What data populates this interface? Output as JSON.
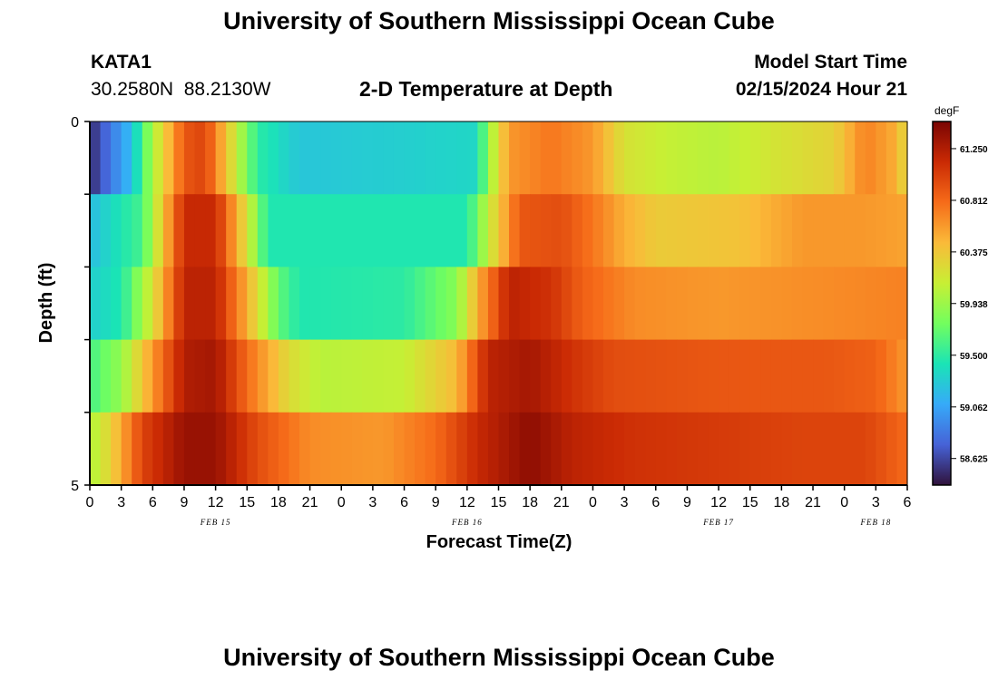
{
  "header": {
    "title": "University of Southern Mississippi Ocean Cube",
    "station_id": "KATA1",
    "coords": "30.2580N  88.2130W",
    "plot_title": "2-D Temperature at Depth",
    "model_start_label": "Model Start Time",
    "model_start_value": "02/15/2024 Hour 21"
  },
  "footer": {
    "title": "University of Southern Mississippi Ocean Cube"
  },
  "colors": {
    "axis": "#000000",
    "palette": [
      "#30123b",
      "#4662d7",
      "#36aaf9",
      "#1ae4b6",
      "#72fe5e",
      "#c8ef34",
      "#faba39",
      "#f66b19",
      "#ca2a04",
      "#7a0403"
    ]
  },
  "chart_data": {
    "type": "heatmap",
    "title": "2-D Temperature at Depth",
    "xlabel": "Forecast Time(Z)",
    "ylabel": "Depth (ft)",
    "x_range_hours": [
      0,
      78
    ],
    "y_range_ft": [
      0,
      5
    ],
    "y_tick_labels": [
      "0",
      "5"
    ],
    "x_tick_labels": [
      "0",
      "3",
      "6",
      "9",
      "12",
      "15",
      "18",
      "21",
      "0",
      "3",
      "6",
      "9",
      "12",
      "15",
      "18",
      "21",
      "0",
      "3",
      "6",
      "9",
      "12",
      "15",
      "18",
      "21",
      "0",
      "3",
      "6"
    ],
    "date_labels": [
      {
        "label": "FEB 15",
        "hour": 12
      },
      {
        "label": "FEB 16",
        "hour": 36
      },
      {
        "label": "FEB 17",
        "hour": 60
      },
      {
        "label": "FEB 18",
        "hour": 75
      }
    ],
    "colorbar": {
      "unit": "degF",
      "min": 58.4,
      "max": 61.48,
      "labels": [
        "61.250",
        "60.812",
        "60.375",
        "59.938",
        "59.500",
        "59.062",
        "58.625"
      ]
    },
    "depth_layers": [
      {
        "depth_ft": 0.5,
        "series": [
          {
            "hour": 0,
            "value": 58.5
          },
          {
            "hour": 4,
            "value": 59.2
          },
          {
            "hour": 6,
            "value": 60.0
          },
          {
            "hour": 9,
            "value": 60.9
          },
          {
            "hour": 11,
            "value": 61.0
          },
          {
            "hour": 13,
            "value": 60.4
          },
          {
            "hour": 16,
            "value": 59.5
          },
          {
            "hour": 20,
            "value": 59.25
          },
          {
            "hour": 30,
            "value": 59.3
          },
          {
            "hour": 37,
            "value": 59.35
          },
          {
            "hour": 38,
            "value": 59.9
          },
          {
            "hour": 40,
            "value": 60.6
          },
          {
            "hour": 44,
            "value": 60.75
          },
          {
            "hour": 48,
            "value": 60.6
          },
          {
            "hour": 51,
            "value": 60.2
          },
          {
            "hour": 55,
            "value": 60.1
          },
          {
            "hour": 60,
            "value": 60.05
          },
          {
            "hour": 66,
            "value": 60.2
          },
          {
            "hour": 71,
            "value": 60.3
          },
          {
            "hour": 74,
            "value": 60.7
          },
          {
            "hour": 77,
            "value": 60.5
          },
          {
            "hour": 78,
            "value": 60.2
          }
        ]
      },
      {
        "depth_ft": 1.5,
        "series": [
          {
            "hour": 0,
            "value": 59.2
          },
          {
            "hour": 5,
            "value": 59.6
          },
          {
            "hour": 7,
            "value": 60.4
          },
          {
            "hour": 9,
            "value": 61.15
          },
          {
            "hour": 12,
            "value": 61.15
          },
          {
            "hour": 15,
            "value": 60.2
          },
          {
            "hour": 17,
            "value": 59.45
          },
          {
            "hour": 36,
            "value": 59.45
          },
          {
            "hour": 38,
            "value": 60.1
          },
          {
            "hour": 41,
            "value": 60.9
          },
          {
            "hour": 45,
            "value": 60.95
          },
          {
            "hour": 48,
            "value": 60.75
          },
          {
            "hour": 51,
            "value": 60.5
          },
          {
            "hour": 54,
            "value": 60.35
          },
          {
            "hour": 62,
            "value": 60.4
          },
          {
            "hour": 68,
            "value": 60.6
          },
          {
            "hour": 74,
            "value": 60.6
          },
          {
            "hour": 78,
            "value": 60.55
          }
        ]
      },
      {
        "depth_ft": 2.5,
        "series": [
          {
            "hour": 0,
            "value": 59.3
          },
          {
            "hour": 3,
            "value": 59.45
          },
          {
            "hour": 6,
            "value": 60.2
          },
          {
            "hour": 9,
            "value": 61.2
          },
          {
            "hour": 12,
            "value": 61.2
          },
          {
            "hour": 15,
            "value": 60.5
          },
          {
            "hour": 18,
            "value": 59.7
          },
          {
            "hour": 20,
            "value": 59.45
          },
          {
            "hour": 30,
            "value": 59.5
          },
          {
            "hour": 35,
            "value": 59.85
          },
          {
            "hour": 37,
            "value": 60.5
          },
          {
            "hour": 40,
            "value": 61.2
          },
          {
            "hour": 44,
            "value": 61.1
          },
          {
            "hour": 47,
            "value": 60.85
          },
          {
            "hour": 52,
            "value": 60.65
          },
          {
            "hour": 60,
            "value": 60.6
          },
          {
            "hour": 70,
            "value": 60.65
          },
          {
            "hour": 78,
            "value": 60.7
          }
        ]
      },
      {
        "depth_ft": 3.5,
        "series": [
          {
            "hour": 0,
            "value": 59.6
          },
          {
            "hour": 3,
            "value": 59.9
          },
          {
            "hour": 6,
            "value": 60.6
          },
          {
            "hour": 9,
            "value": 61.25
          },
          {
            "hour": 12,
            "value": 61.3
          },
          {
            "hour": 15,
            "value": 60.8
          },
          {
            "hour": 19,
            "value": 60.25
          },
          {
            "hour": 22,
            "value": 60.05
          },
          {
            "hour": 30,
            "value": 60.1
          },
          {
            "hour": 35,
            "value": 60.45
          },
          {
            "hour": 38,
            "value": 61.2
          },
          {
            "hour": 42,
            "value": 61.3
          },
          {
            "hour": 46,
            "value": 61.1
          },
          {
            "hour": 50,
            "value": 60.95
          },
          {
            "hour": 60,
            "value": 60.9
          },
          {
            "hour": 70,
            "value": 60.9
          },
          {
            "hour": 75,
            "value": 60.85
          },
          {
            "hour": 78,
            "value": 60.6
          }
        ]
      },
      {
        "depth_ft": 4.5,
        "series": [
          {
            "hour": 0,
            "value": 60.0
          },
          {
            "hour": 2,
            "value": 60.3
          },
          {
            "hour": 5,
            "value": 61.0
          },
          {
            "hour": 9,
            "value": 61.35
          },
          {
            "hour": 12,
            "value": 61.35
          },
          {
            "hour": 16,
            "value": 60.95
          },
          {
            "hour": 21,
            "value": 60.65
          },
          {
            "hour": 28,
            "value": 60.6
          },
          {
            "hour": 33,
            "value": 60.8
          },
          {
            "hour": 37,
            "value": 61.15
          },
          {
            "hour": 42,
            "value": 61.4
          },
          {
            "hour": 46,
            "value": 61.2
          },
          {
            "hour": 52,
            "value": 61.1
          },
          {
            "hour": 60,
            "value": 61.05
          },
          {
            "hour": 68,
            "value": 61.0
          },
          {
            "hour": 74,
            "value": 61.0
          },
          {
            "hour": 78,
            "value": 60.8
          }
        ]
      }
    ]
  }
}
